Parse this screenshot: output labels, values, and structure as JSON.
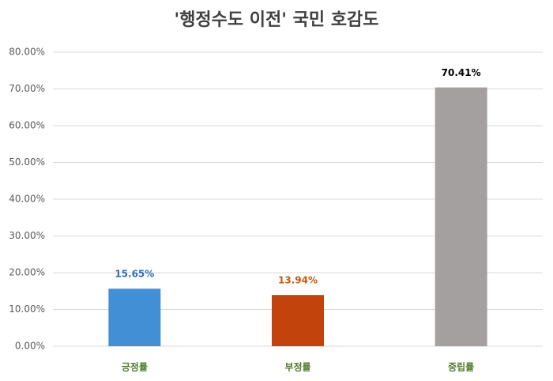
{
  "chart_data": {
    "type": "bar",
    "title": "'행정수도 이전' 국민 호감도",
    "categories": [
      "긍정률",
      "부정률",
      "중립률"
    ],
    "values": [
      15.65,
      13.94,
      70.41
    ],
    "value_labels": [
      "15.65%",
      "13.94%",
      "70.41%"
    ],
    "colors": [
      "#428fd6",
      "#c3430c",
      "#a5a0a0"
    ],
    "value_label_colors": [
      "#2e6db4",
      "#c55a11",
      "#000000"
    ],
    "category_color": "#4f7a28",
    "ylim": [
      0,
      80
    ],
    "yticks": [
      {
        "value": 0,
        "label": "0.00%"
      },
      {
        "value": 10,
        "label": "10.00%"
      },
      {
        "value": 20,
        "label": "20.00%"
      },
      {
        "value": 30,
        "label": "30.00%"
      },
      {
        "value": 40,
        "label": "40.00%"
      },
      {
        "value": 50,
        "label": "50.00%"
      },
      {
        "value": 60,
        "label": "60.00%"
      },
      {
        "value": 70,
        "label": "70.00%"
      },
      {
        "value": 80,
        "label": "80.00%"
      }
    ],
    "grid": true
  }
}
